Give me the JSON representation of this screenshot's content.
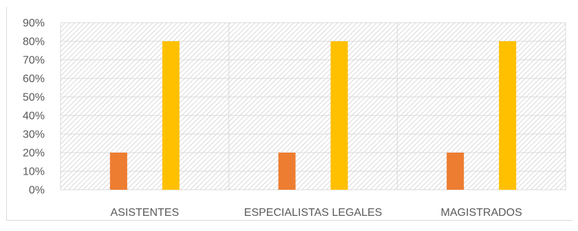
{
  "chart_data": {
    "type": "bar",
    "categories": [
      "ASISTENTES",
      "ESPECIALISTAS LEGALES",
      "MAGISTRADOS"
    ],
    "series": [
      {
        "values": [
          20,
          20,
          20
        ],
        "color": "#ED7D31"
      },
      {
        "values": [
          80,
          80,
          80
        ],
        "color": "#FFC000"
      }
    ],
    "y_ticks": [
      "0%",
      "10%",
      "20%",
      "30%",
      "40%",
      "50%",
      "60%",
      "70%",
      "80%",
      "90%"
    ],
    "ylim": [
      0,
      90
    ],
    "y_unit": "%",
    "grid": true,
    "plot_background": "hatched",
    "title": "",
    "xlabel": "",
    "ylabel": ""
  }
}
